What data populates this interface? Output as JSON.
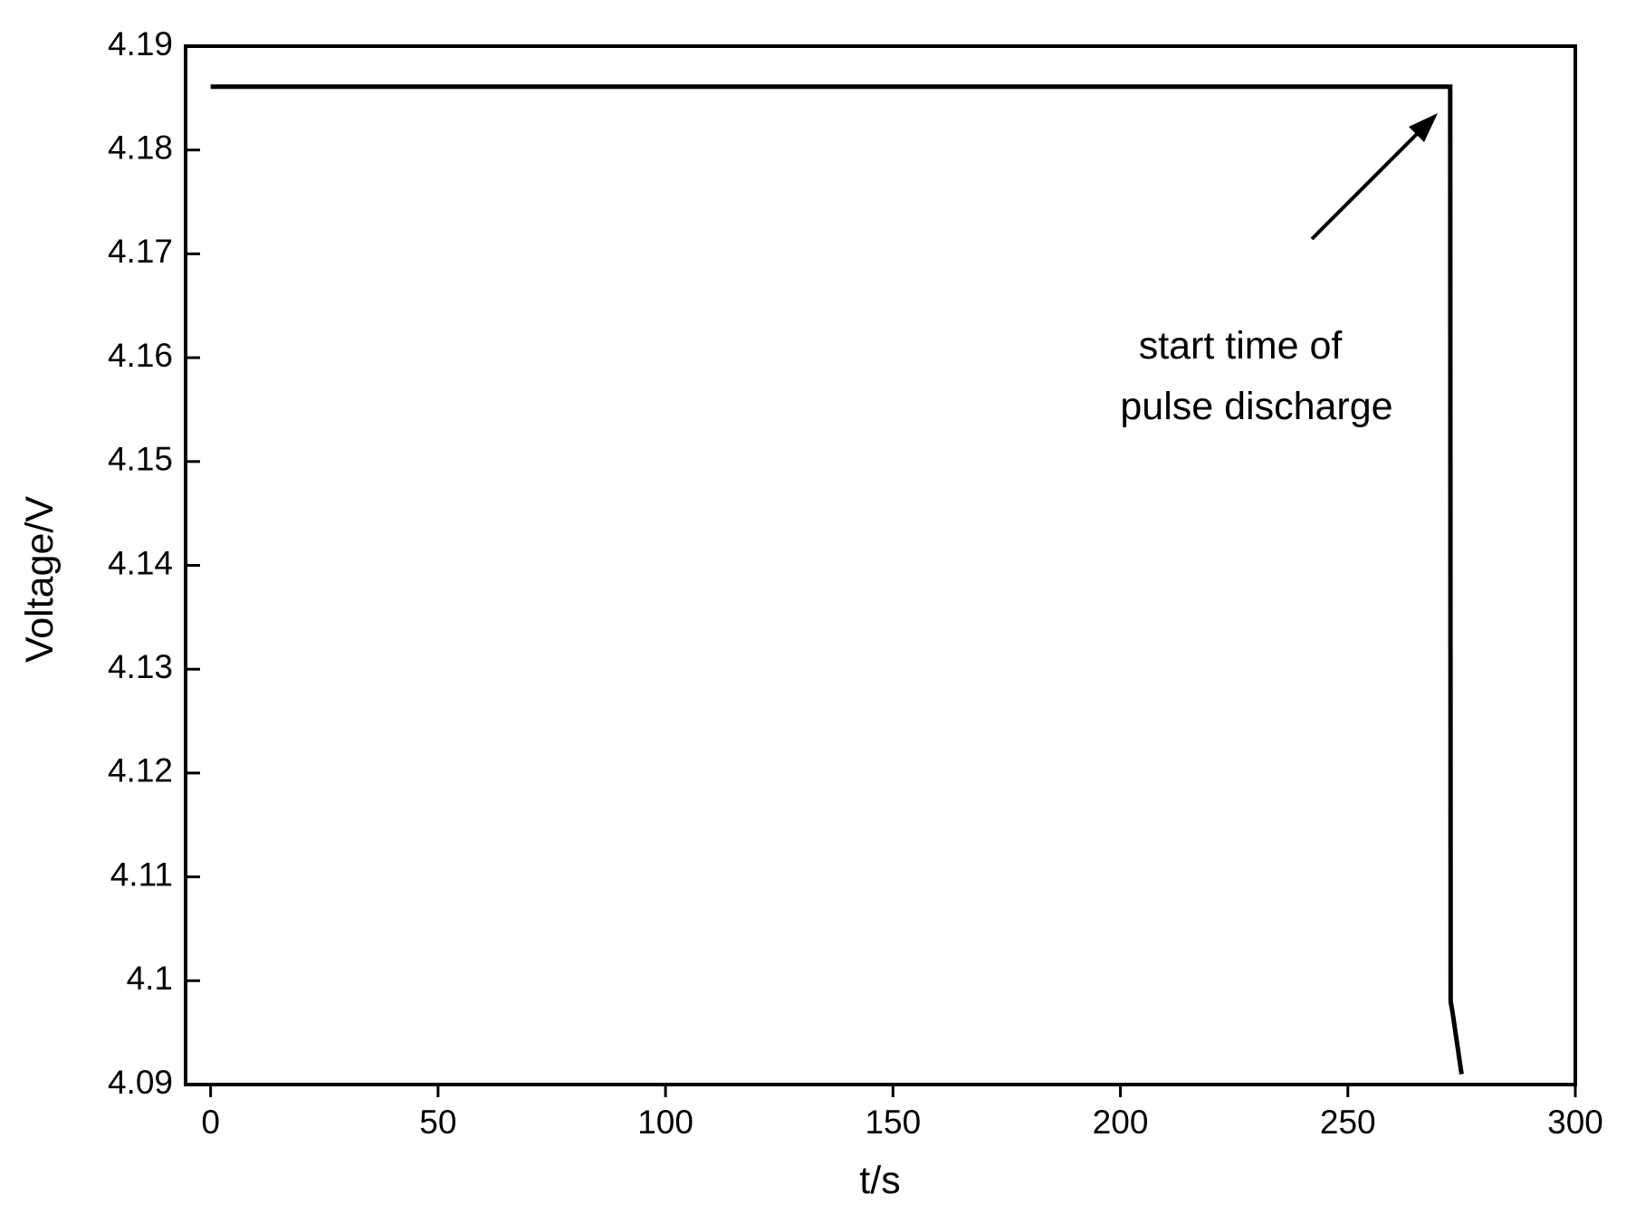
{
  "chart_data": {
    "type": "line",
    "x_label": "t/s",
    "y_label": "Voltage/V",
    "annotation": [
      "start time of",
      "pulse discharge"
    ],
    "x": [
      0,
      272.5,
      272.6,
      273,
      275
    ],
    "series": [
      {
        "color": "#000000",
        "values": [
          4.1861,
          4.1861,
          4.098,
          4.097,
          4.091
        ]
      }
    ],
    "xlim": [
      -5.5,
      300
    ],
    "xticks": [
      0,
      50,
      100,
      150,
      200,
      250,
      300
    ],
    "ylim": [
      4.09,
      4.19
    ],
    "yticks": [
      {
        "value": 4.09,
        "label": "4.09"
      },
      4.1,
      {
        "value": 4.11,
        "label": "4.11"
      },
      {
        "value": 4.12,
        "label": "4.12"
      },
      {
        "value": 4.13,
        "label": "4.13"
      },
      {
        "value": 4.14,
        "label": "4.14"
      },
      {
        "value": 4.15,
        "label": "4.15"
      },
      {
        "value": 4.16,
        "label": "4.16"
      },
      {
        "value": 4.17,
        "label": "4.17"
      },
      {
        "value": 4.18,
        "label": "4.18"
      },
      {
        "value": 4.19,
        "label": "4.19"
      }
    ],
    "grid": false
  }
}
